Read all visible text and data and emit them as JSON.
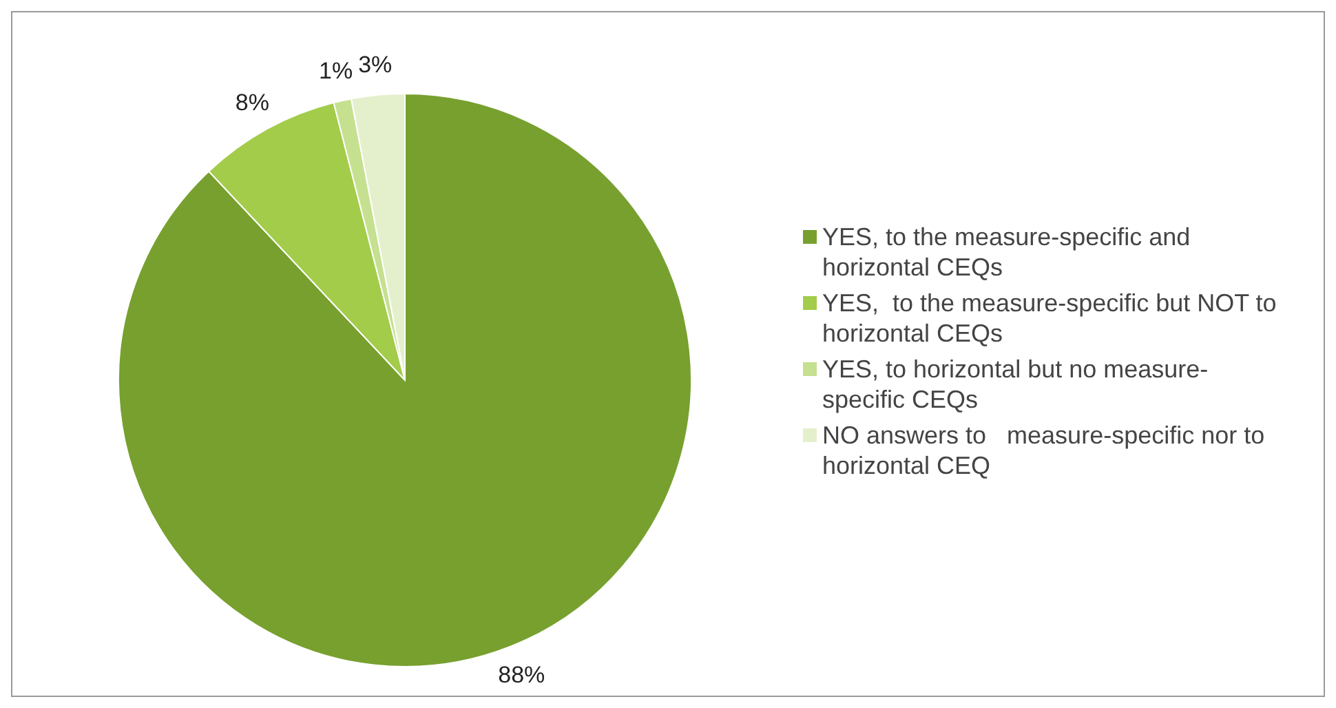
{
  "chart_data": {
    "type": "pie",
    "categories": [
      "YES, to the measure-specific and horizontal CEQs",
      "YES,  to the measure-specific but NOT to horizontal CEQs",
      "YES, to horizontal but no measure-specific CEQs",
      "NO answers to   measure-specific nor to  horizontal CEQ"
    ],
    "values": [
      88,
      8,
      1,
      3
    ],
    "colors": [
      "#77a02e",
      "#a2cc4a",
      "#c5e08f",
      "#e4f0cc"
    ],
    "value_labels": [
      "88%",
      "8%",
      "1%",
      "3%"
    ],
    "legend": "right"
  }
}
